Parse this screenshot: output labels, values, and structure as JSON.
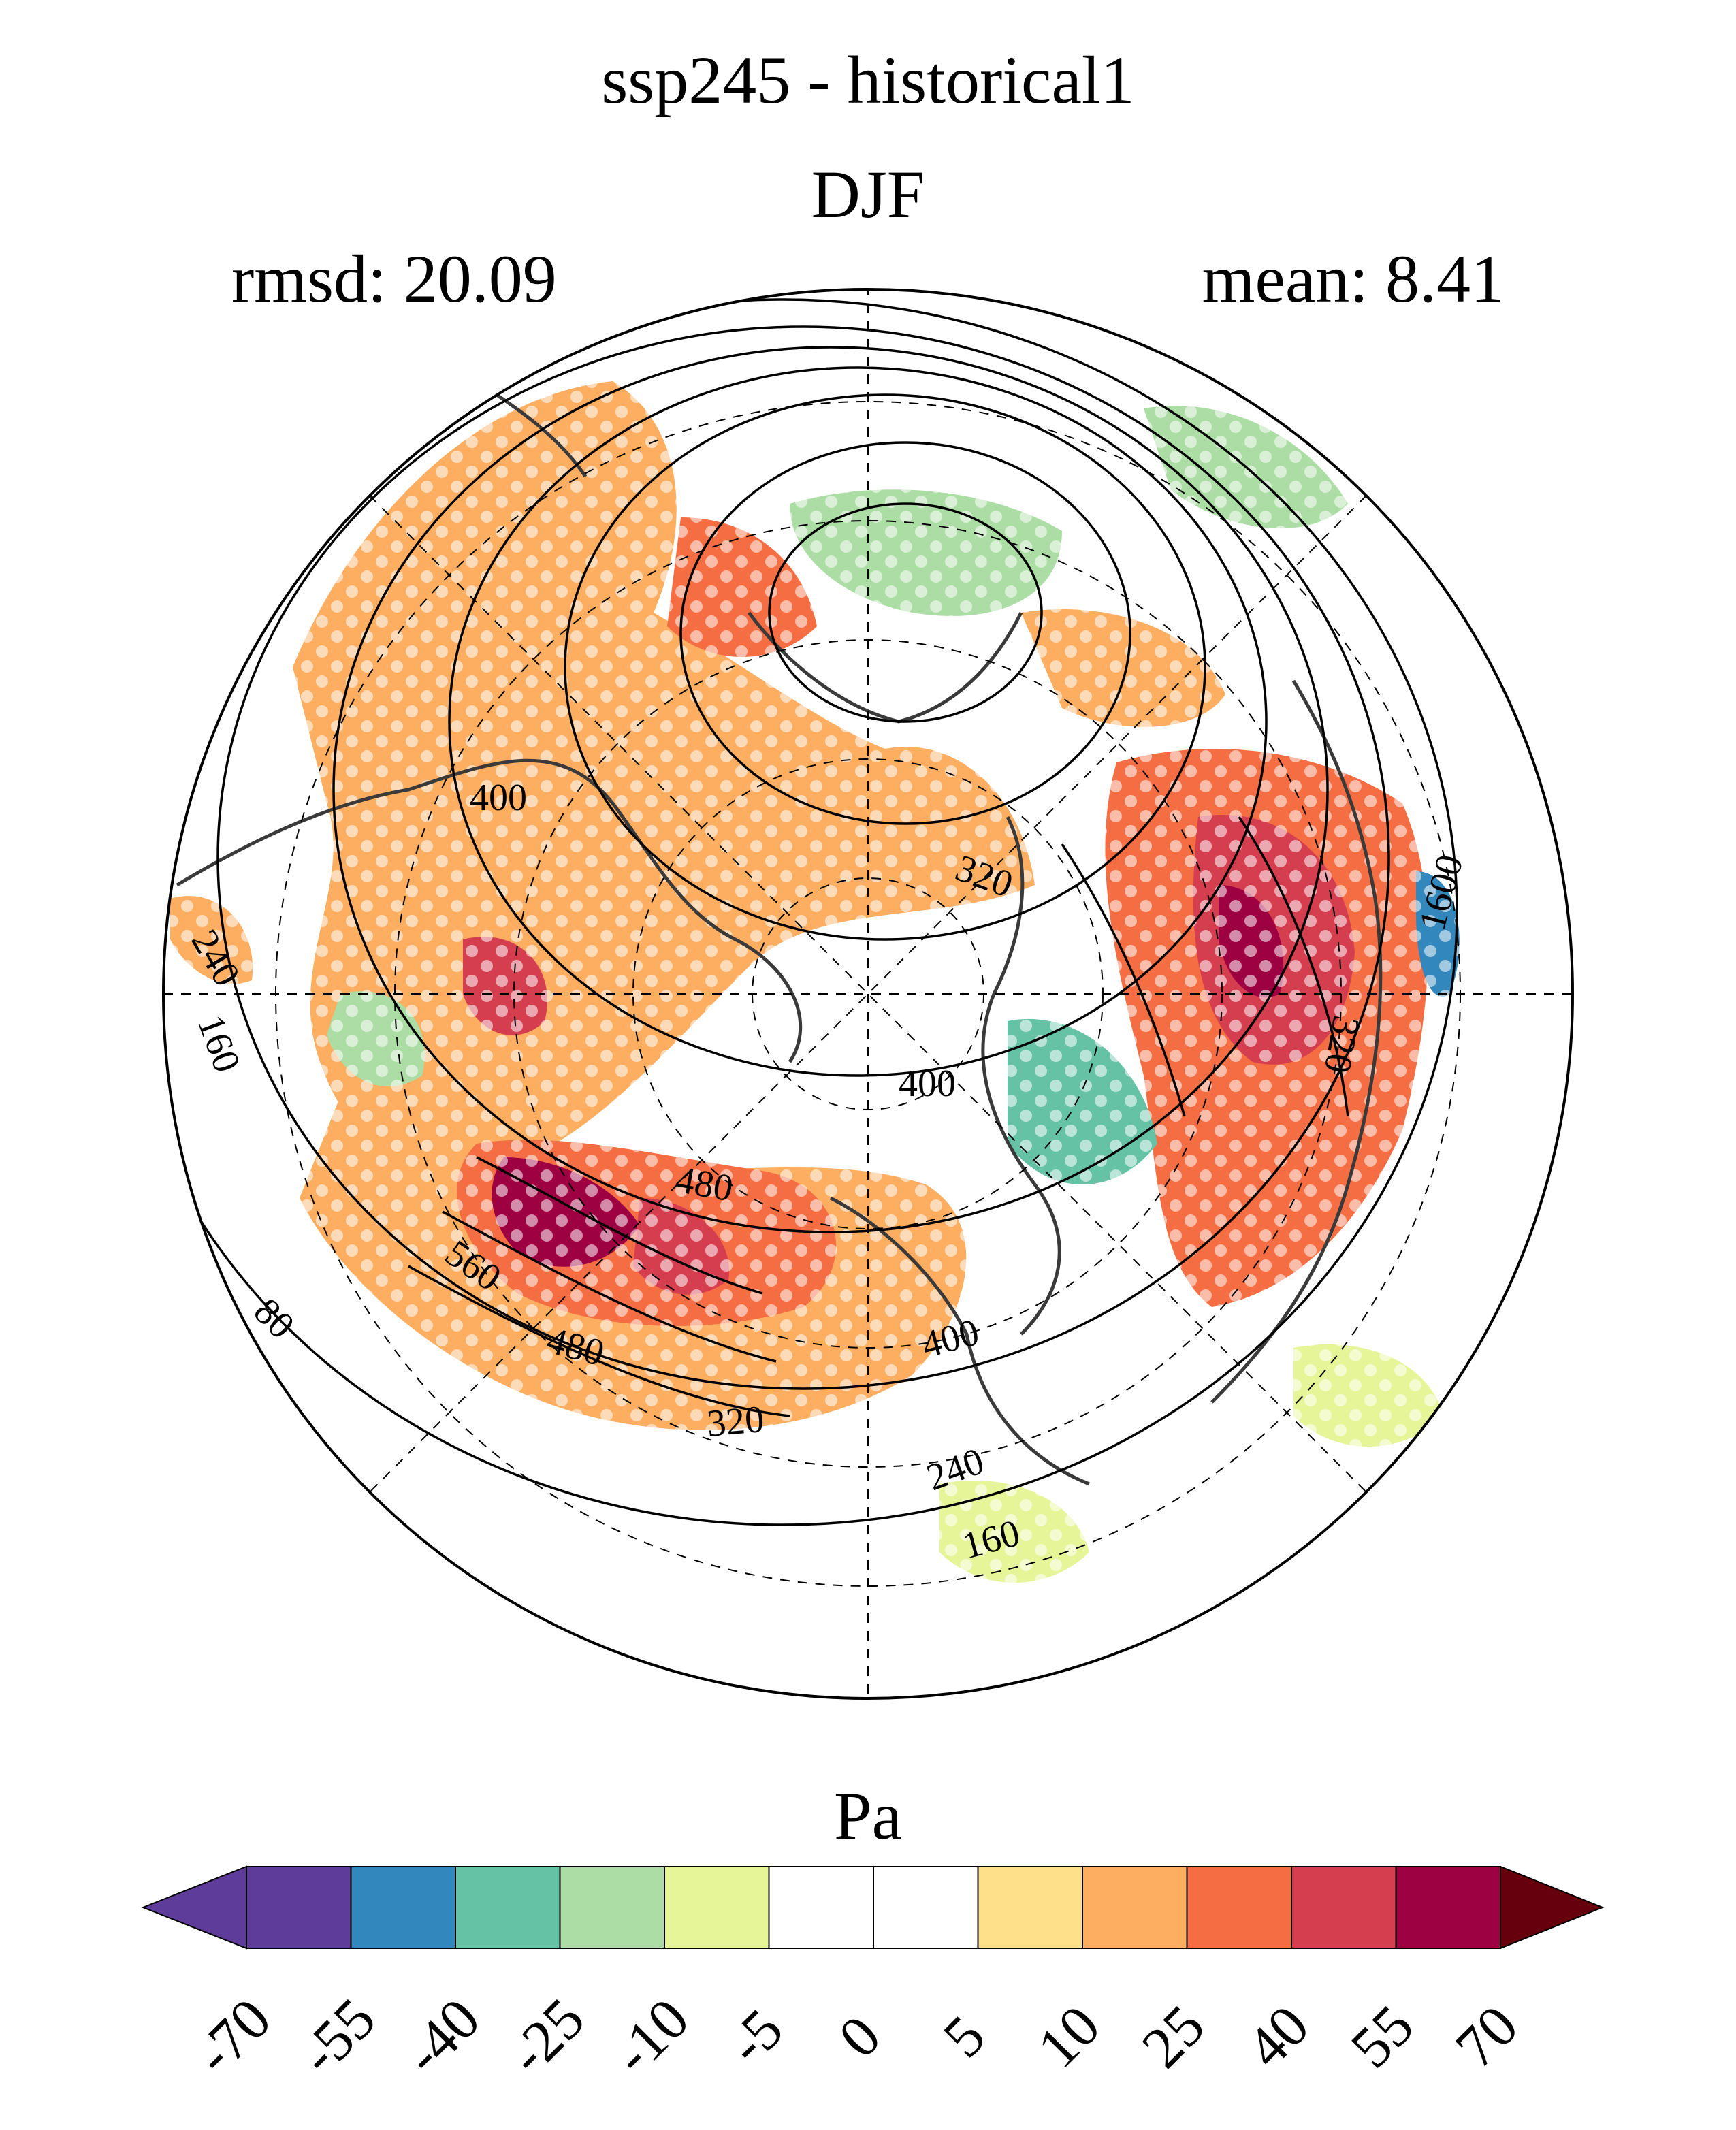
{
  "title": {
    "main": "ssp245 - historical1",
    "season": "DJF"
  },
  "stats": {
    "rmsd": "rmsd: 20.09",
    "mean": "mean: 8.41"
  },
  "units": "Pa",
  "projection": "north-polar-stereographic",
  "colors": {
    "continents": "#3a3a3a",
    "contours": "#000000",
    "grid": "#000000"
  },
  "contour_labels": [
    {
      "text": "400"
    },
    {
      "text": "320"
    },
    {
      "text": "1600"
    },
    {
      "text": "240"
    },
    {
      "text": "160"
    },
    {
      "text": "320"
    },
    {
      "text": "400"
    },
    {
      "text": "480"
    },
    {
      "text": "560"
    },
    {
      "text": "80"
    },
    {
      "text": "480"
    },
    {
      "text": "400"
    },
    {
      "text": "320"
    },
    {
      "text": "240"
    },
    {
      "text": "160"
    }
  ],
  "colorbar": {
    "ticks": [
      "-70",
      "-55",
      "-40",
      "-25",
      "-10",
      "-5",
      "0",
      "5",
      "10",
      "25",
      "40",
      "55",
      "70"
    ],
    "colors": [
      "#5e3c99",
      "#3288bd",
      "#66c2a5",
      "#abdda4",
      "#e6f598",
      "#ffffff",
      "#ffffff",
      "#fee08b",
      "#fdae61",
      "#f46d43",
      "#d53e4f",
      "#9e0142"
    ],
    "under_color": "#5e3c99",
    "over_color": "#67000d",
    "extend": "both"
  }
}
